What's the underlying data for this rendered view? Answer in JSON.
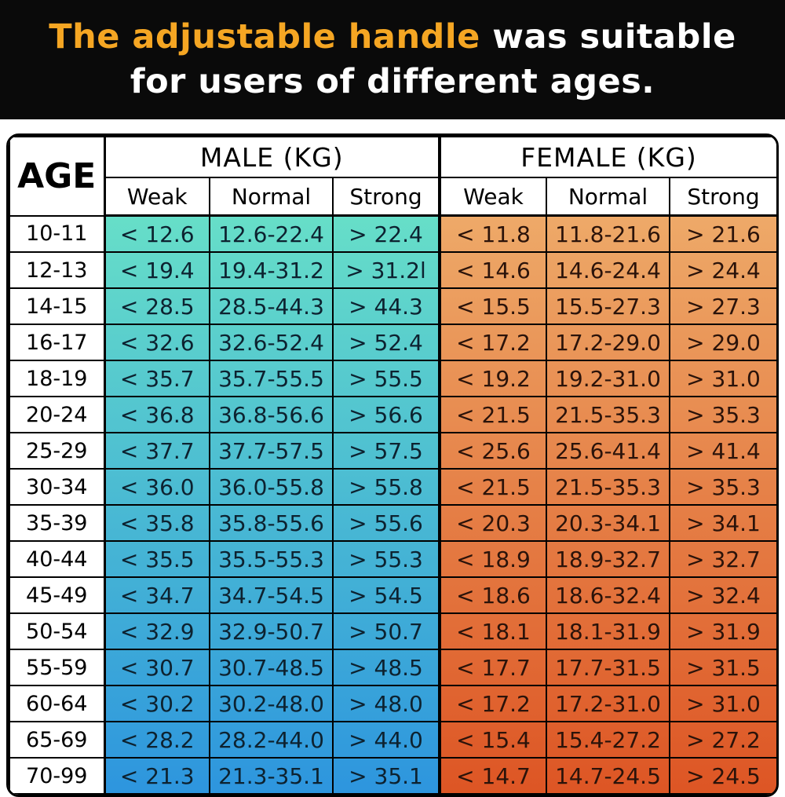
{
  "banner": {
    "title_highlight": "The adjustable handle",
    "title_rest": " was suitable",
    "title_line2": "for users of different ages."
  },
  "colors": {
    "banner_bg": "#0a0a0a",
    "banner_text": "#ffffff",
    "highlight": "#f5a623",
    "border": "#000000",
    "male_gradient_top": "#67dfc8",
    "male_gradient_bottom": "#2d95de",
    "female_gradient_top": "#eeaa69",
    "female_gradient_bottom": "#dd5524",
    "male_text": "#0d2230",
    "female_text": "#2b130a",
    "header_bg": "#ffffff"
  },
  "table": {
    "corner_header": "AGE",
    "male_group_header": "MALE (KG)",
    "female_group_header": "FEMALE (KG)",
    "subheaders": [
      "Weak",
      "Normal",
      "Strong"
    ]
  },
  "chart_data": {
    "type": "table",
    "title": "The adjustable handle was suitable for users of different ages.",
    "unit": "KG",
    "column_groups": [
      {
        "label": "MALE (KG)",
        "span": 3
      },
      {
        "label": "FEMALE (KG)",
        "span": 3
      }
    ],
    "columns": [
      "AGE",
      "Male Weak",
      "Male Normal",
      "Male Strong",
      "Female Weak",
      "Female Normal",
      "Female Strong"
    ],
    "rows": [
      [
        "10-11",
        "< 12.6",
        "12.6-22.4",
        "> 22.4",
        "< 11.8",
        "11.8-21.6",
        "> 21.6"
      ],
      [
        "12-13",
        "< 19.4",
        "19.4-31.2",
        "> 31.2l",
        "< 14.6",
        "14.6-24.4",
        "> 24.4"
      ],
      [
        "14-15",
        "< 28.5",
        "28.5-44.3",
        "> 44.3",
        "< 15.5",
        "15.5-27.3",
        "> 27.3"
      ],
      [
        "16-17",
        "< 32.6",
        "32.6-52.4",
        "> 52.4",
        "< 17.2",
        "17.2-29.0",
        "> 29.0"
      ],
      [
        "18-19",
        "< 35.7",
        "35.7-55.5",
        "> 55.5",
        "< 19.2",
        "19.2-31.0",
        "> 31.0"
      ],
      [
        "20-24",
        "< 36.8",
        "36.8-56.6",
        "> 56.6",
        "< 21.5",
        "21.5-35.3",
        "> 35.3"
      ],
      [
        "25-29",
        "< 37.7",
        "37.7-57.5",
        "> 57.5",
        "< 25.6",
        "25.6-41.4",
        "> 41.4"
      ],
      [
        "30-34",
        "< 36.0",
        "36.0-55.8",
        "> 55.8",
        "< 21.5",
        "21.5-35.3",
        "> 35.3"
      ],
      [
        "35-39",
        "< 35.8",
        "35.8-55.6",
        "> 55.6",
        "< 20.3",
        "20.3-34.1",
        "> 34.1"
      ],
      [
        "40-44",
        "< 35.5",
        "35.5-55.3",
        "> 55.3",
        "< 18.9",
        "18.9-32.7",
        "> 32.7"
      ],
      [
        "45-49",
        "< 34.7",
        "34.7-54.5",
        "> 54.5",
        "< 18.6",
        "18.6-32.4",
        "> 32.4"
      ],
      [
        "50-54",
        "< 32.9",
        "32.9-50.7",
        "> 50.7",
        "< 18.1",
        "18.1-31.9",
        "> 31.9"
      ],
      [
        "55-59",
        "< 30.7",
        "30.7-48.5",
        "> 48.5",
        "< 17.7",
        "17.7-31.5",
        "> 31.5"
      ],
      [
        "60-64",
        "< 30.2",
        "30.2-48.0",
        "> 48.0",
        "< 17.2",
        "17.2-31.0",
        "> 31.0"
      ],
      [
        "65-69",
        "< 28.2",
        "28.2-44.0",
        "> 44.0",
        "< 15.4",
        "15.4-27.2",
        "> 27.2"
      ],
      [
        "70-99",
        "< 21.3",
        "21.3-35.1",
        "> 35.1",
        "< 14.7",
        "14.7-24.5",
        "> 24.5"
      ]
    ]
  }
}
